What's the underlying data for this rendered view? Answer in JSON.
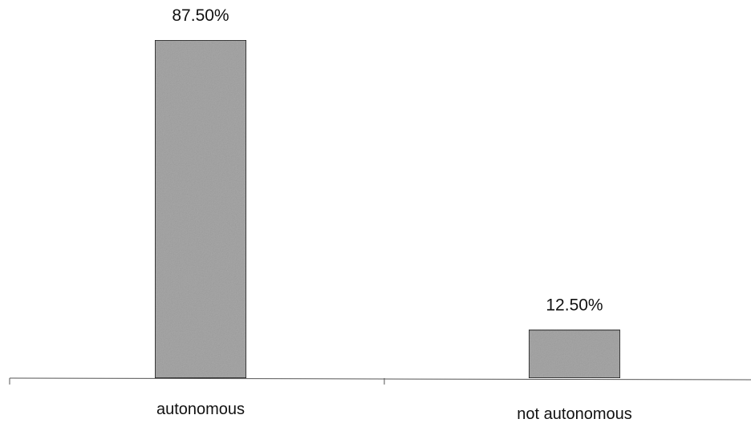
{
  "chart_data": {
    "type": "bar",
    "categories": [
      "autonomous",
      "not autonomous"
    ],
    "values": [
      87.5,
      12.5
    ],
    "value_labels": [
      "87.50%",
      "12.50%"
    ],
    "title": "",
    "xlabel": "",
    "ylabel": "",
    "ylim": [
      0,
      100
    ],
    "unit": "%",
    "grid": false,
    "legend": "none",
    "bar_color": "#a8a8a8",
    "bar_outline": "#1a1a1a"
  }
}
